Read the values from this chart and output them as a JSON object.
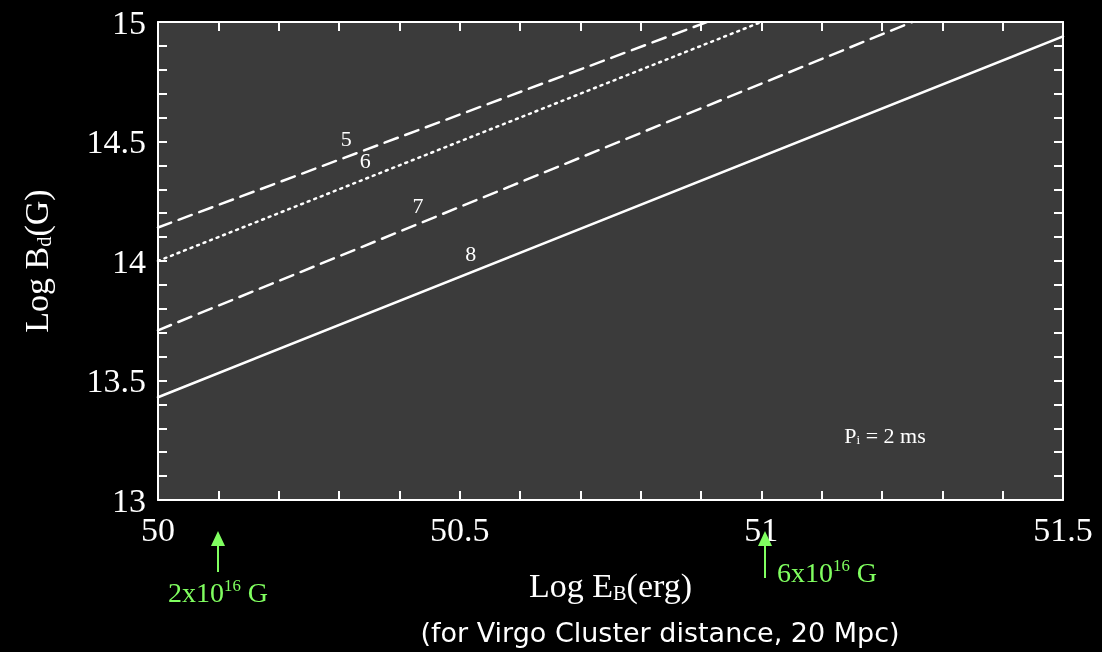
{
  "chart_data": {
    "type": "line",
    "xlabel": "Log E$_{B}$(erg)",
    "ylabel": "Log B$_{d}$(G)",
    "xlim": [
      50,
      51.5
    ],
    "ylim": [
      13,
      15
    ],
    "xticks": [
      50,
      {
        "value": 50.1,
        "label": null
      },
      {
        "value": 50.2,
        "label": null
      },
      {
        "value": 50.3,
        "label": null
      },
      {
        "value": 50.4,
        "label": null
      },
      50.5,
      {
        "value": 50.6,
        "label": null
      },
      {
        "value": 50.7,
        "label": null
      },
      {
        "value": 50.8,
        "label": null
      },
      {
        "value": 50.9,
        "label": null
      },
      51,
      {
        "value": 51.1,
        "label": null
      },
      {
        "value": 51.2,
        "label": null
      },
      {
        "value": 51.3,
        "label": null
      },
      {
        "value": 51.4,
        "label": null
      },
      51.5
    ],
    "yticks": [
      13,
      {
        "value": 13.1,
        "label": null
      },
      {
        "value": 13.2,
        "label": null
      },
      {
        "value": 13.3,
        "label": null
      },
      {
        "value": 13.4,
        "label": null
      },
      13.5,
      {
        "value": 13.6,
        "label": null
      },
      {
        "value": 13.7,
        "label": null
      },
      {
        "value": 13.8,
        "label": null
      },
      {
        "value": 13.9,
        "label": null
      },
      14,
      {
        "value": 14.1,
        "label": null
      },
      {
        "value": 14.2,
        "label": null
      },
      {
        "value": 14.3,
        "label": null
      },
      {
        "value": 14.4,
        "label": null
      },
      14.5,
      {
        "value": 14.6,
        "label": null
      },
      {
        "value": 14.7,
        "label": null
      },
      {
        "value": 14.8,
        "label": null
      },
      {
        "value": 14.9,
        "label": null
      },
      15
    ],
    "series": [
      {
        "name": "5",
        "color": "#ffffff",
        "line_style": "dashed",
        "x": [
          50,
          50.91
        ],
        "values": [
          14.14,
          15
        ]
      },
      {
        "name": "6",
        "color": "#ffffff",
        "line_style": "dotted",
        "x": [
          50,
          51.0
        ],
        "values": [
          14.0,
          15
        ]
      },
      {
        "name": "7",
        "color": "#ffffff",
        "line_style": "dashed",
        "x": [
          50,
          51.25
        ],
        "values": [
          13.71,
          15
        ]
      },
      {
        "name": "8",
        "color": "#ffffff",
        "line_style": "solid",
        "x": [
          50,
          51.5
        ],
        "values": [
          13.43,
          14.94
        ]
      }
    ],
    "marker": "none",
    "grid": false,
    "legend": false,
    "annotations": [
      "P$_{i}$ = 2 ms",
      "2x10$^{16}$ G",
      "6x10$^{16}$ G",
      "(for Virgo Cluster distance, 20 Mpc)"
    ]
  }
}
